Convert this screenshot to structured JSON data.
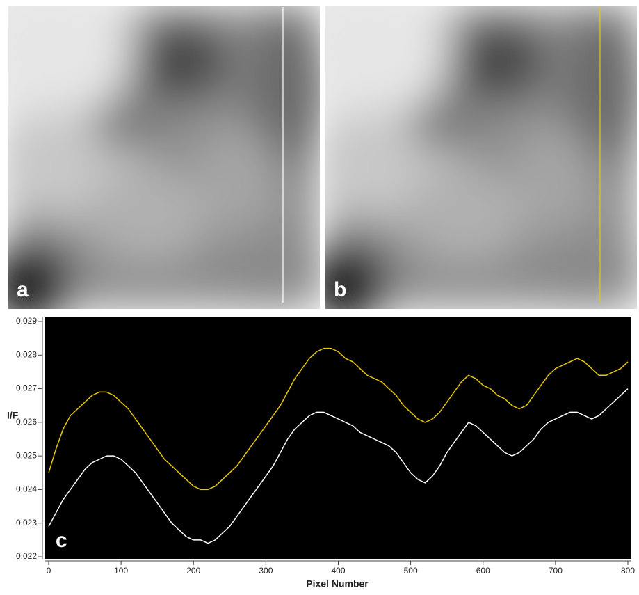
{
  "images": [
    {
      "label": "a",
      "line_color": "#ffffff"
    },
    {
      "label": "b",
      "line_color": "#e8c800"
    }
  ],
  "chart_data": {
    "type": "line",
    "annotation": "c",
    "x_label": "Pixel Number",
    "y_label": "I/F",
    "x": [
      0,
      10,
      20,
      30,
      40,
      50,
      60,
      70,
      80,
      90,
      100,
      110,
      120,
      130,
      140,
      150,
      160,
      170,
      180,
      190,
      200,
      210,
      220,
      230,
      240,
      250,
      260,
      270,
      280,
      290,
      300,
      310,
      320,
      330,
      340,
      350,
      360,
      370,
      380,
      390,
      400,
      410,
      420,
      430,
      440,
      450,
      460,
      470,
      480,
      490,
      500,
      510,
      520,
      530,
      540,
      550,
      560,
      570,
      580,
      590,
      600,
      610,
      620,
      630,
      640,
      650,
      660,
      670,
      680,
      690,
      700,
      710,
      720,
      730,
      740,
      750,
      760,
      770,
      780,
      790,
      800
    ],
    "series": [
      {
        "color": "#e8c800",
        "values": [
          0.0245,
          0.0252,
          0.0258,
          0.0262,
          0.0264,
          0.0266,
          0.0268,
          0.0269,
          0.0269,
          0.0268,
          0.0266,
          0.0264,
          0.0261,
          0.0258,
          0.0255,
          0.0252,
          0.0249,
          0.0247,
          0.0245,
          0.0243,
          0.0241,
          0.024,
          0.024,
          0.0241,
          0.0243,
          0.0245,
          0.0247,
          0.025,
          0.0253,
          0.0256,
          0.0259,
          0.0262,
          0.0265,
          0.0269,
          0.0273,
          0.0276,
          0.0279,
          0.0281,
          0.0282,
          0.0282,
          0.0281,
          0.0279,
          0.0278,
          0.0276,
          0.0274,
          0.0273,
          0.0272,
          0.027,
          0.0268,
          0.0265,
          0.0263,
          0.0261,
          0.026,
          0.0261,
          0.0263,
          0.0266,
          0.0269,
          0.0272,
          0.0274,
          0.0273,
          0.0271,
          0.027,
          0.0268,
          0.0267,
          0.0265,
          0.0264,
          0.0265,
          0.0268,
          0.0271,
          0.0274,
          0.0276,
          0.0277,
          0.0278,
          0.0279,
          0.0278,
          0.0276,
          0.0274,
          0.0274,
          0.0275,
          0.0276,
          0.0278
        ]
      },
      {
        "color": "#ffffff",
        "values": [
          0.0229,
          0.0233,
          0.0237,
          0.024,
          0.0243,
          0.0246,
          0.0248,
          0.0249,
          0.025,
          0.025,
          0.0249,
          0.0247,
          0.0245,
          0.0242,
          0.0239,
          0.0236,
          0.0233,
          0.023,
          0.0228,
          0.0226,
          0.0225,
          0.0225,
          0.0224,
          0.0225,
          0.0227,
          0.0229,
          0.0232,
          0.0235,
          0.0238,
          0.0241,
          0.0244,
          0.0247,
          0.0251,
          0.0255,
          0.0258,
          0.026,
          0.0262,
          0.0263,
          0.0263,
          0.0262,
          0.0261,
          0.026,
          0.0259,
          0.0257,
          0.0256,
          0.0255,
          0.0254,
          0.0253,
          0.0251,
          0.0248,
          0.0245,
          0.0243,
          0.0242,
          0.0244,
          0.0247,
          0.0251,
          0.0254,
          0.0257,
          0.026,
          0.0259,
          0.0257,
          0.0255,
          0.0253,
          0.0251,
          0.025,
          0.0251,
          0.0253,
          0.0255,
          0.0258,
          0.026,
          0.0261,
          0.0262,
          0.0263,
          0.0263,
          0.0262,
          0.0261,
          0.0262,
          0.0264,
          0.0266,
          0.0268,
          0.027
        ]
      }
    ],
    "xlim": [
      0,
      800
    ],
    "xticks": [
      0,
      100,
      200,
      300,
      400,
      500,
      600,
      700,
      800
    ],
    "ylim": [
      0.022,
      0.029
    ],
    "yticks": [
      0.022,
      0.023,
      0.024,
      0.025,
      0.026,
      0.027,
      0.028,
      0.029
    ]
  }
}
